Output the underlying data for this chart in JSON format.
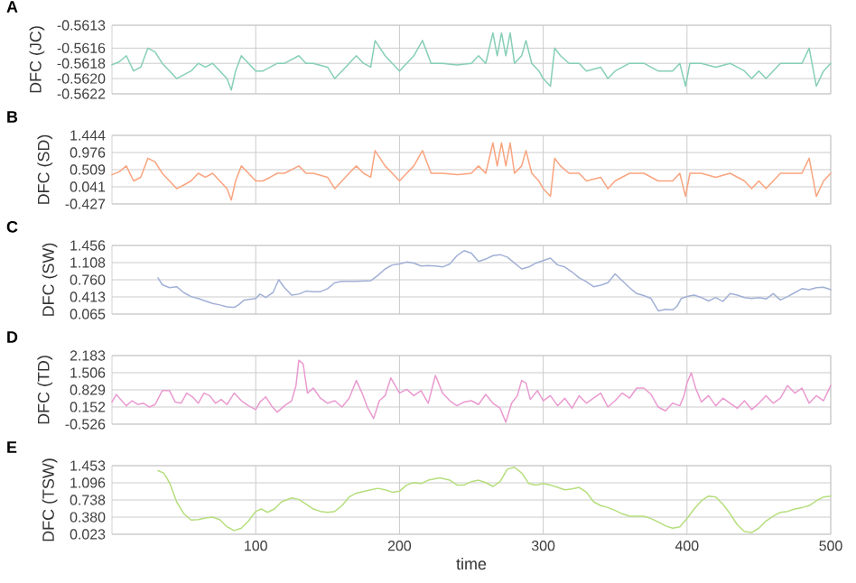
{
  "chart_data": [
    {
      "type": "line",
      "title": "A",
      "ylabel": "DFC (JC)",
      "xlim": [
        0,
        500
      ],
      "xticks": [
        100,
        200,
        300,
        400,
        500
      ],
      "ylim": [
        -0.5622,
        -0.5613
      ],
      "yticks": [
        -0.5622,
        {
          "value": -0.562,
          "label": "-0.5620"
        },
        -0.5618,
        -0.5616,
        -0.5613
      ],
      "grid": true,
      "tick_labels": "y",
      "series": [
        {
          "color": "#86cfb5",
          "x": [
            0,
            5,
            10,
            15,
            20,
            25,
            30,
            35,
            40,
            45,
            50,
            55,
            60,
            65,
            70,
            75,
            80,
            83,
            86,
            90,
            95,
            100,
            105,
            110,
            115,
            120,
            130,
            135,
            140,
            150,
            155,
            160,
            165,
            170,
            175,
            180,
            183,
            190,
            195,
            200,
            205,
            210,
            216,
            222,
            230,
            240,
            250,
            255,
            260,
            265,
            268,
            271,
            274,
            277,
            280,
            285,
            288,
            292,
            297,
            300,
            305,
            308,
            312,
            318,
            325,
            330,
            340,
            345,
            350,
            360,
            370,
            380,
            390,
            395,
            399,
            402,
            410,
            420,
            430,
            440,
            445,
            450,
            455,
            460,
            465,
            470,
            480,
            485,
            490,
            495,
            500
          ],
          "values": [
            -0.56182,
            -0.56178,
            -0.5617,
            -0.5619,
            -0.56185,
            -0.5616,
            -0.56165,
            -0.5618,
            -0.5619,
            -0.562,
            -0.56195,
            -0.5619,
            -0.5618,
            -0.56185,
            -0.5618,
            -0.5619,
            -0.562,
            -0.56215,
            -0.5619,
            -0.5617,
            -0.5618,
            -0.5619,
            -0.5619,
            -0.56185,
            -0.5618,
            -0.5618,
            -0.5617,
            -0.5618,
            -0.5618,
            -0.56185,
            -0.562,
            -0.5619,
            -0.5618,
            -0.5617,
            -0.5618,
            -0.56185,
            -0.5615,
            -0.5617,
            -0.5618,
            -0.5619,
            -0.5618,
            -0.5617,
            -0.5615,
            -0.5618,
            -0.5618,
            -0.56182,
            -0.5618,
            -0.5617,
            -0.5618,
            -0.5614,
            -0.5617,
            -0.5614,
            -0.5617,
            -0.5614,
            -0.5618,
            -0.5617,
            -0.5615,
            -0.5618,
            -0.5619,
            -0.562,
            -0.5621,
            -0.5616,
            -0.5617,
            -0.5618,
            -0.5618,
            -0.5619,
            -0.56185,
            -0.562,
            -0.5619,
            -0.5618,
            -0.5618,
            -0.5619,
            -0.5619,
            -0.5618,
            -0.5621,
            -0.5618,
            -0.5618,
            -0.56185,
            -0.5618,
            -0.5619,
            -0.562,
            -0.5619,
            -0.562,
            -0.5619,
            -0.5618,
            -0.5618,
            -0.5618,
            -0.5616,
            -0.5621,
            -0.5619,
            -0.5618
          ]
        }
      ]
    },
    {
      "type": "line",
      "title": "B",
      "ylabel": "DFC (SD)",
      "xlim": [
        0,
        500
      ],
      "xticks": [
        100,
        200,
        300,
        400,
        500
      ],
      "ylim": [
        -0.427,
        1.444
      ],
      "yticks": [
        -0.427,
        0.041,
        0.509,
        0.976,
        1.444
      ],
      "grid": true,
      "tick_labels": "y",
      "series": [
        {
          "color": "#f9a47f",
          "x": [
            0,
            5,
            10,
            15,
            20,
            25,
            30,
            35,
            40,
            45,
            50,
            55,
            60,
            65,
            70,
            75,
            80,
            83,
            86,
            90,
            95,
            100,
            105,
            110,
            115,
            120,
            130,
            135,
            140,
            150,
            155,
            160,
            165,
            170,
            175,
            180,
            183,
            190,
            195,
            200,
            205,
            210,
            216,
            222,
            230,
            240,
            250,
            255,
            260,
            265,
            268,
            271,
            274,
            277,
            280,
            285,
            288,
            292,
            297,
            300,
            305,
            308,
            312,
            318,
            325,
            330,
            340,
            345,
            350,
            360,
            370,
            380,
            390,
            395,
            399,
            402,
            410,
            420,
            430,
            440,
            445,
            450,
            455,
            460,
            465,
            470,
            480,
            485,
            490,
            495,
            500
          ],
          "values": [
            0.37,
            0.45,
            0.61,
            0.2,
            0.3,
            0.82,
            0.72,
            0.41,
            0.2,
            -0.01,
            0.09,
            0.2,
            0.41,
            0.3,
            0.41,
            0.2,
            -0.01,
            -0.32,
            0.2,
            0.61,
            0.41,
            0.2,
            0.2,
            0.3,
            0.41,
            0.41,
            0.61,
            0.41,
            0.41,
            0.3,
            -0.01,
            0.2,
            0.41,
            0.61,
            0.41,
            0.3,
            1.03,
            0.61,
            0.41,
            0.2,
            0.41,
            0.61,
            1.03,
            0.41,
            0.41,
            0.37,
            0.41,
            0.61,
            0.41,
            1.24,
            0.61,
            1.24,
            0.61,
            1.24,
            0.41,
            0.61,
            1.03,
            0.41,
            0.2,
            -0.01,
            -0.22,
            0.82,
            0.61,
            0.41,
            0.41,
            0.2,
            0.3,
            -0.01,
            0.2,
            0.41,
            0.41,
            0.2,
            0.2,
            0.41,
            -0.22,
            0.41,
            0.41,
            0.3,
            0.41,
            0.2,
            -0.01,
            0.2,
            -0.01,
            0.2,
            0.41,
            0.41,
            0.41,
            0.82,
            -0.22,
            0.2,
            0.41
          ]
        }
      ]
    },
    {
      "type": "line",
      "title": "C",
      "ylabel": "DFC (SW)",
      "xlim": [
        0,
        500
      ],
      "xticks": [
        100,
        200,
        300,
        400,
        500
      ],
      "ylim": [
        0.065,
        1.456
      ],
      "yticks": [
        0.065,
        0.413,
        {
          "value": 0.76,
          "label": "0.760"
        },
        1.108,
        1.456
      ],
      "grid": true,
      "tick_labels": "y",
      "series": [
        {
          "color": "#a1b0d6",
          "x": [
            32,
            35,
            40,
            45,
            50,
            55,
            60,
            65,
            70,
            75,
            80,
            85,
            88,
            92,
            100,
            103,
            107,
            112,
            116,
            120,
            125,
            130,
            135,
            140,
            145,
            150,
            155,
            160,
            170,
            180,
            185,
            190,
            195,
            200,
            205,
            210,
            215,
            220,
            225,
            230,
            235,
            240,
            245,
            250,
            255,
            260,
            265,
            270,
            275,
            280,
            285,
            290,
            295,
            300,
            305,
            310,
            315,
            320,
            325,
            330,
            335,
            340,
            345,
            350,
            355,
            360,
            365,
            370,
            375,
            380,
            385,
            390,
            393,
            396,
            400,
            405,
            410,
            415,
            420,
            425,
            430,
            435,
            440,
            445,
            450,
            455,
            460,
            465,
            470,
            475,
            480,
            485,
            490,
            495,
            500
          ],
          "values": [
            0.8,
            0.66,
            0.6,
            0.62,
            0.5,
            0.42,
            0.38,
            0.33,
            0.28,
            0.25,
            0.21,
            0.2,
            0.25,
            0.35,
            0.38,
            0.47,
            0.4,
            0.5,
            0.76,
            0.6,
            0.45,
            0.47,
            0.53,
            0.52,
            0.52,
            0.58,
            0.7,
            0.73,
            0.73,
            0.74,
            0.85,
            0.98,
            1.06,
            1.08,
            1.12,
            1.1,
            1.04,
            1.05,
            1.04,
            1.02,
            1.08,
            1.25,
            1.35,
            1.3,
            1.13,
            1.18,
            1.25,
            1.27,
            1.22,
            1.1,
            0.98,
            1.02,
            1.1,
            1.15,
            1.2,
            1.06,
            1.02,
            0.92,
            0.8,
            0.72,
            0.62,
            0.65,
            0.7,
            0.88,
            0.74,
            0.6,
            0.48,
            0.44,
            0.38,
            0.13,
            0.16,
            0.15,
            0.22,
            0.38,
            0.42,
            0.45,
            0.4,
            0.33,
            0.4,
            0.32,
            0.48,
            0.45,
            0.4,
            0.38,
            0.4,
            0.37,
            0.48,
            0.35,
            0.42,
            0.5,
            0.58,
            0.56,
            0.6,
            0.61,
            0.56
          ]
        }
      ]
    },
    {
      "type": "line",
      "title": "D",
      "ylabel": "DFC (TD)",
      "xlim": [
        0,
        500
      ],
      "xticks": [
        100,
        200,
        300,
        400,
        500
      ],
      "ylim": [
        -0.526,
        2.183
      ],
      "yticks": [
        -0.526,
        0.152,
        0.829,
        1.506,
        2.183
      ],
      "grid": true,
      "tick_labels": "y",
      "series": [
        {
          "color": "#e99ad0",
          "x": [
            0,
            3,
            6,
            10,
            14,
            18,
            22,
            26,
            30,
            35,
            40,
            44,
            48,
            52,
            56,
            60,
            64,
            68,
            72,
            76,
            80,
            85,
            90,
            95,
            100,
            103,
            107,
            111,
            115,
            120,
            125,
            128,
            130,
            133,
            136,
            140,
            145,
            150,
            155,
            160,
            165,
            170,
            174,
            178,
            182,
            186,
            190,
            194,
            197,
            200,
            205,
            210,
            215,
            220,
            225,
            230,
            235,
            240,
            245,
            250,
            255,
            260,
            265,
            270,
            274,
            278,
            282,
            285,
            288,
            291,
            296,
            300,
            305,
            310,
            315,
            320,
            325,
            330,
            335,
            340,
            345,
            350,
            355,
            360,
            365,
            370,
            375,
            380,
            385,
            390,
            395,
            398,
            400,
            403,
            406,
            410,
            415,
            420,
            425,
            430,
            435,
            440,
            445,
            450,
            455,
            460,
            465,
            470,
            475,
            480,
            485,
            490,
            495,
            500
          ],
          "values": [
            0.35,
            0.65,
            0.45,
            0.2,
            0.4,
            0.25,
            0.3,
            0.15,
            0.25,
            0.8,
            0.8,
            0.35,
            0.3,
            0.7,
            0.55,
            0.3,
            0.7,
            0.6,
            0.3,
            0.45,
            0.25,
            0.7,
            0.4,
            0.2,
            0.05,
            0.35,
            0.55,
            0.2,
            -0.05,
            0.2,
            0.4,
            1.0,
            2.0,
            1.85,
            0.7,
            0.9,
            0.5,
            0.3,
            0.4,
            0.15,
            0.5,
            1.2,
            0.7,
            0.1,
            -0.3,
            0.4,
            0.6,
            1.3,
            1.0,
            0.7,
            0.85,
            0.6,
            0.8,
            0.3,
            1.4,
            0.7,
            0.4,
            0.2,
            0.35,
            0.4,
            0.25,
            0.65,
            0.3,
            0.1,
            -0.45,
            0.3,
            0.6,
            1.2,
            1.1,
            0.45,
            0.8,
            0.4,
            0.6,
            0.2,
            0.5,
            0.1,
            0.6,
            0.3,
            0.5,
            0.7,
            0.15,
            0.4,
            0.7,
            0.5,
            0.9,
            0.9,
            0.65,
            0.15,
            0.0,
            0.3,
            0.2,
            0.6,
            1.1,
            1.5,
            0.9,
            0.35,
            0.6,
            0.2,
            0.5,
            0.3,
            0.1,
            0.4,
            0.05,
            0.3,
            0.6,
            0.3,
            0.5,
            1.0,
            0.7,
            0.9,
            0.3,
            0.6,
            0.4,
            1.0
          ]
        }
      ]
    },
    {
      "type": "line",
      "title": "E",
      "ylabel": "DFC (TSW)",
      "xlabel": "time",
      "xlim": [
        0,
        500
      ],
      "xticks": [
        100,
        200,
        300,
        400,
        500
      ],
      "ylim": [
        0.023,
        1.453
      ],
      "yticks": [
        0.023,
        {
          "value": 0.38,
          "label": "0.380"
        },
        0.738,
        1.096,
        1.453
      ],
      "grid": true,
      "series": [
        {
          "color": "#b5de7c",
          "x": [
            32,
            36,
            40,
            45,
            50,
            55,
            60,
            65,
            70,
            75,
            80,
            85,
            90,
            95,
            100,
            104,
            108,
            113,
            118,
            125,
            130,
            135,
            140,
            145,
            150,
            155,
            160,
            165,
            170,
            180,
            185,
            190,
            195,
            200,
            205,
            210,
            215,
            220,
            228,
            235,
            240,
            245,
            250,
            255,
            260,
            265,
            270,
            275,
            280,
            285,
            290,
            295,
            300,
            305,
            310,
            315,
            320,
            325,
            330,
            335,
            340,
            345,
            350,
            355,
            360,
            365,
            370,
            375,
            380,
            385,
            390,
            395,
            400,
            405,
            410,
            415,
            420,
            425,
            430,
            435,
            440,
            445,
            450,
            455,
            460,
            465,
            470,
            475,
            480,
            485,
            490,
            495,
            500
          ],
          "values": [
            1.35,
            1.3,
            1.1,
            0.7,
            0.45,
            0.32,
            0.33,
            0.36,
            0.38,
            0.33,
            0.18,
            0.1,
            0.15,
            0.3,
            0.5,
            0.55,
            0.48,
            0.55,
            0.7,
            0.78,
            0.75,
            0.65,
            0.55,
            0.5,
            0.48,
            0.5,
            0.62,
            0.8,
            0.88,
            0.95,
            0.98,
            0.95,
            0.9,
            0.92,
            1.05,
            1.1,
            1.08,
            1.15,
            1.2,
            1.15,
            1.05,
            1.05,
            1.12,
            1.15,
            1.1,
            1.02,
            1.12,
            1.38,
            1.42,
            1.3,
            1.08,
            1.05,
            1.08,
            1.05,
            1.0,
            0.95,
            0.97,
            1.0,
            0.9,
            0.7,
            0.62,
            0.58,
            0.52,
            0.45,
            0.4,
            0.4,
            0.4,
            0.35,
            0.28,
            0.2,
            0.15,
            0.18,
            0.35,
            0.55,
            0.72,
            0.82,
            0.8,
            0.65,
            0.45,
            0.22,
            0.08,
            0.06,
            0.15,
            0.3,
            0.4,
            0.48,
            0.5,
            0.55,
            0.58,
            0.62,
            0.72,
            0.8,
            0.82
          ]
        }
      ]
    }
  ]
}
